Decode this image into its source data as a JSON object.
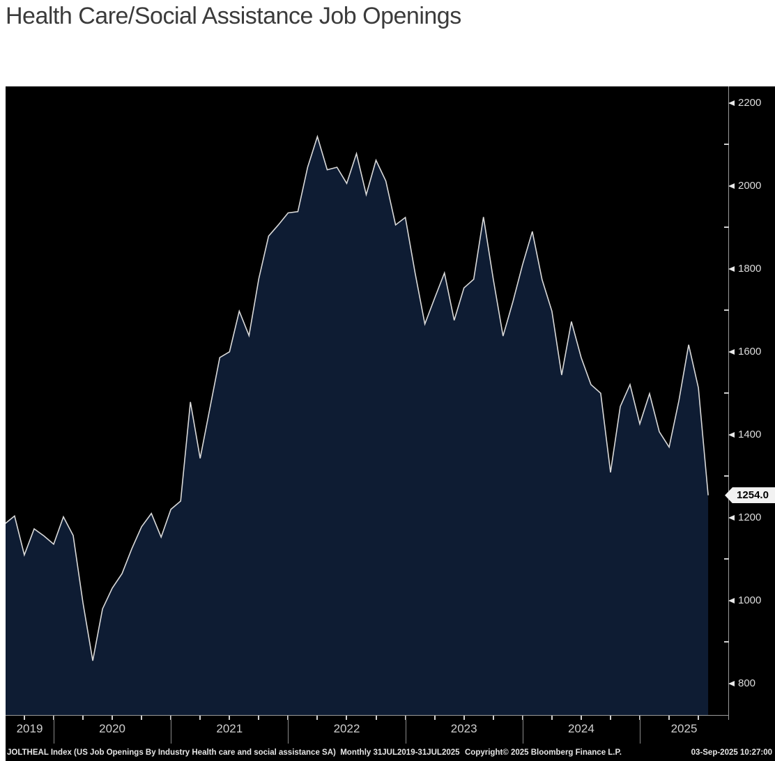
{
  "title": "Health Care/Social Assistance Job Openings",
  "chart_data": {
    "type": "area",
    "title": "Health Care/Social Assistance Job Openings",
    "frequency": "Monthly",
    "period": "31JUL2019-31JUL2025",
    "x_months": [
      "2019-07",
      "2019-08",
      "2019-09",
      "2019-10",
      "2019-11",
      "2019-12",
      "2020-01",
      "2020-02",
      "2020-03",
      "2020-04",
      "2020-05",
      "2020-06",
      "2020-07",
      "2020-08",
      "2020-09",
      "2020-10",
      "2020-11",
      "2020-12",
      "2021-01",
      "2021-02",
      "2021-03",
      "2021-04",
      "2021-05",
      "2021-06",
      "2021-07",
      "2021-08",
      "2021-09",
      "2021-10",
      "2021-11",
      "2021-12",
      "2022-01",
      "2022-02",
      "2022-03",
      "2022-04",
      "2022-05",
      "2022-06",
      "2022-07",
      "2022-08",
      "2022-09",
      "2022-10",
      "2022-11",
      "2022-12",
      "2023-01",
      "2023-02",
      "2023-03",
      "2023-04",
      "2023-05",
      "2023-06",
      "2023-07",
      "2023-08",
      "2023-09",
      "2023-10",
      "2023-11",
      "2023-12",
      "2024-01",
      "2024-02",
      "2024-03",
      "2024-04",
      "2024-05",
      "2024-06",
      "2024-07",
      "2024-08",
      "2024-09",
      "2024-10",
      "2024-11",
      "2024-12",
      "2025-01",
      "2025-02",
      "2025-03",
      "2025-04",
      "2025-05",
      "2025-06",
      "2025-07"
    ],
    "series": [
      {
        "name": "JOLTHEAL Index",
        "values": [
          1185,
          1204,
          1110,
          1173,
          1156,
          1136,
          1202,
          1157,
          995,
          855,
          980,
          1030,
          1065,
          1125,
          1178,
          1210,
          1153,
          1220,
          1240,
          1479,
          1343,
          1465,
          1586,
          1600,
          1698,
          1639,
          1776,
          1879,
          1906,
          1935,
          1938,
          2045,
          2119,
          2039,
          2045,
          2006,
          2078,
          1979,
          2062,
          2012,
          1906,
          1924,
          1790,
          1667,
          1729,
          1790,
          1676,
          1754,
          1775,
          1925,
          1775,
          1638,
          1720,
          1810,
          1890,
          1774,
          1698,
          1544,
          1673,
          1586,
          1521,
          1500,
          1309,
          1468,
          1521,
          1426,
          1499,
          1407,
          1370,
          1482,
          1617,
          1513,
          1254
        ]
      }
    ],
    "ylim": [
      724,
      2240
    ],
    "y_major_ticks": [
      2200,
      2000,
      1800,
      1600,
      1400,
      1200,
      1000,
      800
    ],
    "y_minor_ticks": [
      2100,
      1900,
      1700,
      1500,
      1300,
      1100,
      900
    ],
    "x_year_labels": [
      "2019",
      "2020",
      "2021",
      "2022",
      "2023",
      "2024",
      "2025"
    ],
    "grid": false,
    "legend_position": "none",
    "last_value": 1254.0,
    "last_value_label": "1254.0",
    "colors": {
      "background": "#000000",
      "area_fill": "#0e1c33",
      "line": "#dadada",
      "axis": "#9b9b9b",
      "tick_text": "#dcdcdc",
      "tag_bg": "#f2f2f2",
      "tag_text": "#000000"
    }
  },
  "footer": {
    "left": "JOLTHEAL Index (US Job Openings By Industry Health care and social assistance SA)  Monthly 31JUL2019-31JUL2025",
    "copyright": "Copyright© 2025 Bloomberg Finance L.P.",
    "datetime": "03-Sep-2025 10:27:00"
  }
}
